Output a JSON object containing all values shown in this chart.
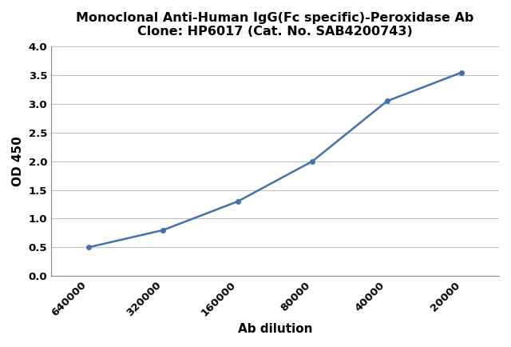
{
  "title_line1": "Monoclonal Anti-Human IgG(Fc specific)-Peroxidase Ab",
  "title_line2": "Clone: HP6017 (Cat. No. SAB4200743)",
  "xlabel": "Ab dilution",
  "ylabel": "OD 450",
  "x_positions": [
    0,
    1,
    2,
    3,
    4,
    5
  ],
  "y_values": [
    0.5,
    0.8,
    1.3,
    2.0,
    3.05,
    3.55
  ],
  "x_tick_labels": [
    "640000",
    "320000",
    "160000",
    "80000",
    "40000",
    "20000"
  ],
  "ylim": [
    0.0,
    4.0
  ],
  "y_ticks": [
    0.0,
    0.5,
    1.0,
    1.5,
    2.0,
    2.5,
    3.0,
    3.5,
    4.0
  ],
  "line_color": "#4472A8",
  "marker": "o",
  "marker_size": 4,
  "line_width": 1.8,
  "title_fontsize": 11.5,
  "label_fontsize": 11,
  "tick_fontsize": 9.5,
  "background_color": "#ffffff",
  "grid_color": "#c0c0c0"
}
